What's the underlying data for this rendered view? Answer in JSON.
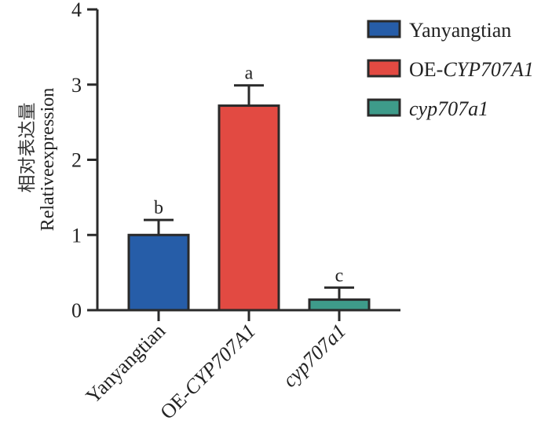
{
  "chart_data": {
    "type": "bar",
    "title": "",
    "xlabel": "",
    "ylabel_cn": "相对表达量",
    "ylabel": "Relativeexpression",
    "ylim": [
      0,
      4
    ],
    "yticks": [
      "0",
      "1",
      "2",
      "3",
      "4"
    ],
    "categories": [
      {
        "prefix": "",
        "italic": "",
        "plain": "Yanyangtian"
      },
      {
        "prefix": "OE-",
        "italic": "CYP707A1",
        "plain": ""
      },
      {
        "prefix": "",
        "italic": "cyp707a1",
        "plain": ""
      }
    ],
    "values": [
      1.0,
      2.72,
      0.14
    ],
    "errors": [
      0.2,
      0.27,
      0.16
    ],
    "significance": [
      "b",
      "a",
      "c"
    ],
    "colors": [
      "#265da8",
      "#e24a42",
      "#3e9b8a"
    ],
    "legend": {
      "position": "top-right",
      "entries": [
        {
          "prefix": "Yanyangtian",
          "italic": ""
        },
        {
          "prefix": "OE-",
          "italic": "CYP707A1"
        },
        {
          "prefix": "",
          "italic": "cyp707a1"
        }
      ]
    }
  }
}
